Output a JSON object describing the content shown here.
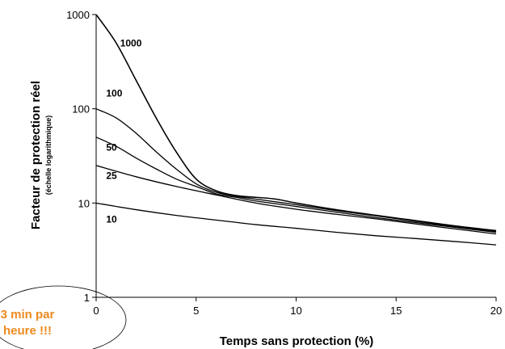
{
  "chart_data": {
    "type": "line",
    "title": "",
    "xlabel": "Temps sans protection (%)",
    "ylabel": "Facteur de protection réel",
    "ylabel_sub": "(échelle logarithmique)",
    "y_scale": "log",
    "xlim": [
      0,
      20
    ],
    "ylim": [
      1,
      1000
    ],
    "x_ticks": [
      0,
      5,
      10,
      15,
      20
    ],
    "y_ticks": [
      1,
      10,
      100,
      1000
    ],
    "x_tick_labels": [
      "0",
      "5",
      "10",
      "15",
      "20"
    ],
    "y_tick_labels": [
      "1",
      "10",
      "100",
      "1000"
    ],
    "grid": false,
    "legend": "none",
    "series": [
      {
        "name": "1000",
        "x": [
          0,
          1,
          2,
          3,
          4,
          5,
          6,
          7,
          8,
          9,
          10,
          12,
          14,
          16,
          18,
          20
        ],
        "y": [
          1000,
          500,
          200,
          80,
          35,
          18,
          13.5,
          12,
          11.5,
          11,
          10,
          8.5,
          7.4,
          6.5,
          5.7,
          5.1
        ]
      },
      {
        "name": "100",
        "x": [
          0,
          1,
          2,
          3,
          4,
          5,
          6,
          7,
          8,
          10,
          12,
          14,
          16,
          18,
          20
        ],
        "y": [
          100,
          80,
          55,
          35,
          23,
          16,
          13,
          11.8,
          11,
          9.6,
          8.3,
          7.3,
          6.4,
          5.6,
          5
        ]
      },
      {
        "name": "50",
        "x": [
          0,
          1,
          2,
          3,
          4,
          5,
          6,
          7,
          8,
          10,
          12,
          14,
          16,
          18,
          20
        ],
        "y": [
          50,
          40,
          30,
          23,
          18,
          15,
          12.5,
          11.5,
          10.5,
          9.2,
          8,
          7,
          6.2,
          5.5,
          4.9
        ]
      },
      {
        "name": "25",
        "x": [
          0,
          2,
          4,
          6,
          8,
          10,
          12,
          14,
          16,
          18,
          20
        ],
        "y": [
          25,
          19,
          15,
          12.2,
          10,
          8.6,
          7.6,
          6.8,
          6,
          5.3,
          4.7
        ]
      },
      {
        "name": "10",
        "x": [
          0,
          2,
          4,
          6,
          8,
          10,
          12,
          14,
          16,
          18,
          20
        ],
        "y": [
          10,
          8.5,
          7.4,
          6.6,
          5.9,
          5.4,
          4.9,
          4.5,
          4.2,
          3.9,
          3.6
        ]
      }
    ],
    "series_labels": [
      {
        "text": "1000",
        "x": 1.2,
        "y": 460
      },
      {
        "text": "100",
        "x": 0.5,
        "y": 135
      },
      {
        "text": "50",
        "x": 0.5,
        "y": 36
      },
      {
        "text": "25",
        "x": 0.5,
        "y": 18
      },
      {
        "text": "10",
        "x": 0.5,
        "y": 6.2
      }
    ],
    "annotation": {
      "line1": "3 min par",
      "line2": "heure !!!"
    }
  }
}
